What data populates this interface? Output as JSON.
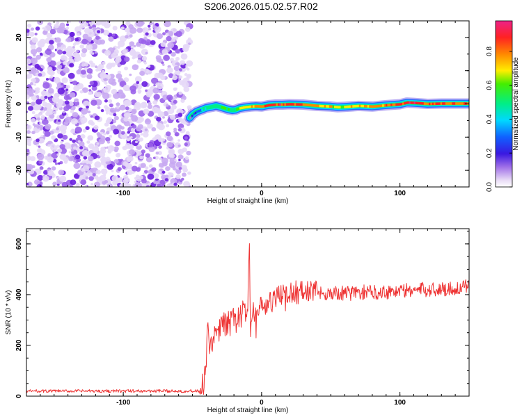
{
  "figure": {
    "title": "S206.2026.015.02.57.R02"
  },
  "chart_data": [
    {
      "type": "heatmap",
      "xlabel": "Height of straight line (km)",
      "ylabel": "Frequency (Hz)",
      "xlim": [
        -170,
        150
      ],
      "ylim": [
        -25,
        25
      ],
      "xticks": [
        -100,
        0,
        100
      ],
      "yticks": [
        -20,
        -10,
        0,
        10,
        20
      ],
      "noise_region_x": [
        -170,
        -52
      ],
      "ridge": {
        "x": [
          -52,
          -50,
          -47,
          -43,
          -40,
          -36,
          -33,
          -30,
          -27,
          -24,
          -21,
          -19,
          -16,
          -12,
          -8,
          -4,
          0,
          5,
          10,
          15,
          20,
          30,
          40,
          50,
          55,
          60,
          70,
          80,
          90,
          100,
          105,
          110,
          120,
          130,
          140,
          150
        ],
        "y": [
          -4.2,
          -3.2,
          -2.3,
          -1.7,
          -1.2,
          -0.9,
          -0.6,
          -0.9,
          -1.3,
          -1.7,
          -1.9,
          -1.8,
          -1.3,
          -1.0,
          -0.8,
          -0.7,
          -0.8,
          -0.4,
          -0.2,
          -0.2,
          -0.1,
          -0.2,
          -0.6,
          -0.8,
          -1.0,
          -0.9,
          -0.6,
          -0.8,
          -0.4,
          -0.1,
          0.4,
          0.3,
          0.0,
          0.1,
          0.1,
          0.1
        ],
        "strength": [
          0.15,
          0.25,
          0.35,
          0.45,
          0.55,
          0.6,
          0.55,
          0.6,
          0.65,
          0.6,
          0.5,
          0.6,
          0.7,
          0.75,
          0.8,
          0.85,
          0.9,
          0.92,
          0.95,
          0.95,
          0.93,
          0.9,
          0.85,
          0.75,
          0.7,
          0.72,
          0.78,
          0.8,
          0.85,
          0.9,
          0.95,
          0.95,
          0.93,
          0.92,
          0.9,
          0.9
        ]
      },
      "colorbar": {
        "label": "Normalized spectral amplitude",
        "ticks": [
          "0.0",
          "0.2",
          "0.4",
          "0.6",
          "0.8"
        ],
        "tick_values": [
          0.0,
          0.2,
          0.4,
          0.6,
          0.8
        ],
        "range": [
          0,
          0.98
        ]
      }
    },
    {
      "type": "line",
      "xlabel": "Height of straight line (km)",
      "ylabel": "SNR (10 * v/v)",
      "xlim": [
        -170,
        150
      ],
      "ylim": [
        0,
        660
      ],
      "xticks": [
        -100,
        0,
        100
      ],
      "yticks": [
        0,
        200,
        400,
        600
      ],
      "color": "#ee3333",
      "series": [
        {
          "x": [
            -170,
            -60,
            -45,
            -42,
            -40,
            -39,
            -38,
            -37,
            -36,
            -35,
            -33,
            -31,
            -28,
            -25,
            -23,
            -20,
            -18,
            -15,
            -12,
            -10,
            -9,
            -8,
            -7,
            -6,
            -5,
            -3,
            0,
            5,
            10,
            15,
            20,
            25,
            30,
            35,
            40,
            50,
            60,
            70,
            80,
            90,
            100,
            110,
            120,
            130,
            140,
            150
          ],
          "y": [
            20,
            20,
            20,
            40,
            120,
            300,
            160,
            200,
            180,
            250,
            230,
            260,
            270,
            290,
            280,
            300,
            300,
            320,
            330,
            340,
            640,
            200,
            300,
            320,
            330,
            340,
            350,
            360,
            380,
            395,
            405,
            410,
            410,
            415,
            410,
            405,
            405,
            408,
            410,
            412,
            415,
            418,
            420,
            422,
            425,
            430
          ]
        }
      ]
    }
  ]
}
